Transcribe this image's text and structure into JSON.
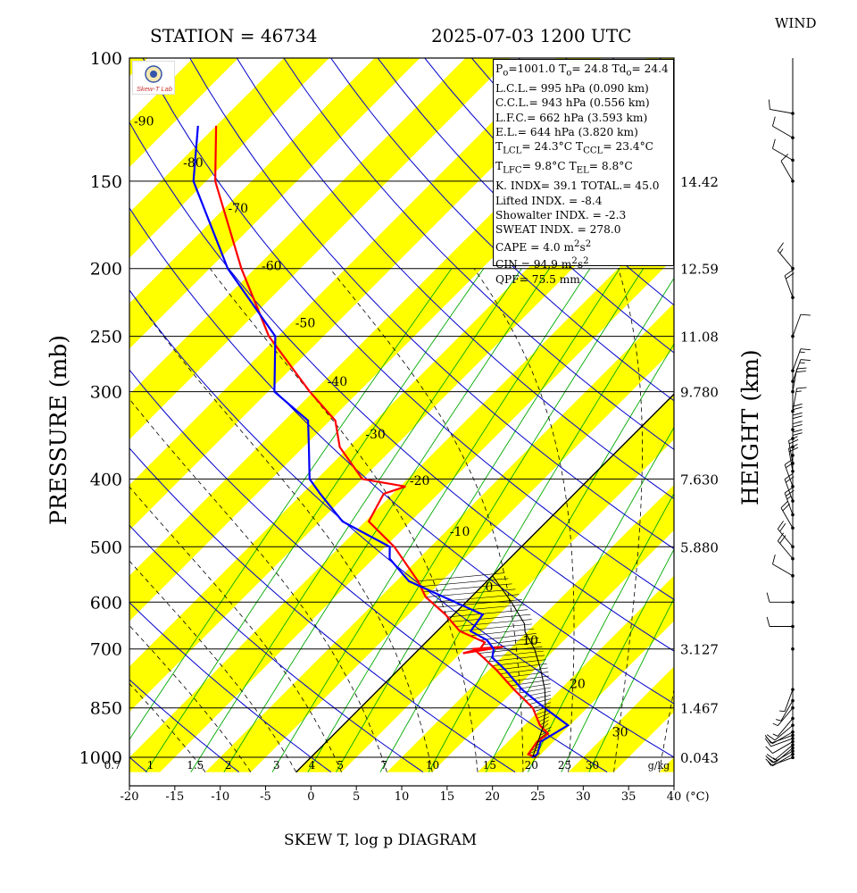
{
  "header": {
    "station": "STATION = 46734",
    "datetime": "2025-07-03 1200 UTC",
    "wind": "WIND"
  },
  "footer": {
    "title": "SKEW T, log p DIAGRAM"
  },
  "axes": {
    "ylabel": "PRESSURE (mb)",
    "ylabel_right": "HEIGHT (km)",
    "x_unit": "(°C)"
  },
  "logo": {
    "text": "Skew-T Lab"
  },
  "info": {
    "p0": "P",
    "p0_sub": "o",
    "p0_val": "=1001.0 ",
    "t0": "T",
    "t0_sub": "o",
    "t0_val": "= 24.8 ",
    "td0": "Td",
    "td0_sub": "o",
    "td0_val": "= 24.4",
    "lcl": "L.C.L.= 995 hPa (0.090 km)",
    "ccl": "C.C.L.= 943 hPa (0.556 km)",
    "lfc": "L.F.C.= 662 hPa (3.593 km)",
    "el": "E.L.= 644 hPa (3.820 km)",
    "tlcl": "T",
    "tlcl_sub": "LCL",
    "tlcl_val": "= 24.3°C ",
    "tccl": "T",
    "tccl_sub": "CCL",
    "tccl_val": "= 23.4°C",
    "tlfc": "T",
    "tlfc_sub": "LFC",
    "tlfc_val": "= 9.8°C  ",
    "tel": "T",
    "tel_sub": "EL",
    "tel_val": "= 8.8°C",
    "k": "K. INDX= 39.1  TOTAL.= 45.0",
    "li": "Lifted INDX. = -8.4",
    "si": "Showalter INDX. = -2.3",
    "sweat": "SWEAT INDX. = 278.0",
    "cape_label": "CAPE =",
    "cape_val": "4.0 m",
    "cape_exp": "2",
    "cape_s": "s",
    "cape_sexp": "2",
    "cin_label": "CIN  =",
    "cin_val": "94.9 m",
    "cin_exp": "2",
    "cin_s": "s",
    "cin_sexp": "2",
    "qpf": "QPF= 75.5 mm"
  },
  "colors": {
    "temperature": "#ff0000",
    "dewpoint": "#0000ff",
    "parcel": "#000000",
    "isotherm_band": "#ffff00",
    "dry_adiabat": "#0000cc",
    "moist_adiabat": "#000000",
    "mixing_ratio": "#00aa00"
  },
  "chart_data": {
    "type": "line",
    "title": "SKEW T, log p DIAGRAM",
    "ylabel": "PRESSURE (mb)",
    "y_scale": "log",
    "y_range": [
      1050,
      100
    ],
    "x_range": [
      -20,
      40
    ],
    "pressure_ticks": [
      "100",
      "150",
      "200",
      "250",
      "300",
      "400",
      "500",
      "600",
      "700",
      "850",
      "1000"
    ],
    "height_labels": [
      {
        "p": 150,
        "label": "14.42"
      },
      {
        "p": 200,
        "label": "12.59"
      },
      {
        "p": 250,
        "label": "11.08"
      },
      {
        "p": 300,
        "label": "9.780"
      },
      {
        "p": 400,
        "label": "7.630"
      },
      {
        "p": 500,
        "label": "5.880"
      },
      {
        "p": 700,
        "label": "3.127"
      },
      {
        "p": 850,
        "label": "1.467"
      },
      {
        "p": 1000,
        "label": "0.043"
      }
    ],
    "temp_ticks": [
      "-20",
      "-15",
      "-10",
      "-5",
      "0",
      "5",
      "10",
      "15",
      "20",
      "25",
      "30",
      "35",
      "40"
    ],
    "isotherm_labels": [
      {
        "t": -90,
        "p": 123
      },
      {
        "t": -80,
        "p": 141
      },
      {
        "t": -70,
        "p": 164
      },
      {
        "t": -60,
        "p": 198
      },
      {
        "t": -50,
        "p": 239
      },
      {
        "t": -40,
        "p": 290
      },
      {
        "t": -30,
        "p": 345
      },
      {
        "t": -20,
        "p": 402
      },
      {
        "t": -10,
        "p": 475
      },
      {
        "t": 0,
        "p": 570
      },
      {
        "t": 10,
        "p": 680
      },
      {
        "t": 20,
        "p": 785
      },
      {
        "t": 30,
        "p": 920
      }
    ],
    "mixing_ratio_labels": [
      "0.7",
      "1",
      "1.5",
      "2",
      "3",
      "4",
      "5",
      "7",
      "10",
      "15",
      "20",
      "25",
      "30"
    ],
    "mixing_ratio_unit": "g/kg",
    "series": [
      {
        "name": "temperature",
        "p": [
          1001,
          990,
          950,
          925,
          900,
          850,
          800,
          750,
          720,
          700,
          695,
          710,
          700,
          685,
          660,
          625,
          590,
          560,
          500,
          460,
          420,
          410,
          400,
          360,
          330,
          300,
          250,
          200,
          150,
          125
        ],
        "t": [
          24.8,
          23.6,
          23.2,
          23.5,
          21.7,
          19.0,
          14.9,
          10.8,
          8.0,
          6.0,
          9.0,
          5.3,
          6.7,
          6.5,
          2.5,
          -0.9,
          -5.0,
          -7.6,
          -14.0,
          -19.6,
          -21.0,
          -19.4,
          -25.0,
          -31.0,
          -34.4,
          -40.4,
          -51.0,
          -61.5,
          -74.0,
          -80.0
        ]
      },
      {
        "name": "dewpoint",
        "p": [
          1001,
          990,
          950,
          900,
          850,
          800,
          750,
          720,
          700,
          680,
          660,
          625,
          590,
          560,
          520,
          500,
          460,
          420,
          400,
          360,
          330,
          300,
          250,
          200,
          150,
          125
        ],
        "t": [
          24.4,
          24.6,
          23.6,
          24.8,
          20.3,
          15.8,
          11.8,
          9.0,
          8.2,
          6.5,
          3.7,
          3.2,
          -3.0,
          -8.6,
          -13.2,
          -14.5,
          -22.5,
          -28.0,
          -30.8,
          -34.4,
          -37.4,
          -44.3,
          -50.3,
          -63.0,
          -76.4,
          -82.0
        ]
      },
      {
        "name": "parcel",
        "p": [
          1001,
          995,
          950,
          900,
          850,
          800,
          750,
          700,
          662,
          644,
          600,
          550
        ],
        "t": [
          24.8,
          24.3,
          23.3,
          22.1,
          20.4,
          18.3,
          15.7,
          12.7,
          9.8,
          8.8,
          5.0,
          0.0
        ]
      }
    ],
    "wind": {
      "p": [
        1001,
        990,
        980,
        970,
        960,
        950,
        940,
        930,
        920,
        900,
        880,
        850,
        830,
        800,
        700,
        650,
        600,
        550,
        520,
        500,
        470,
        450,
        430,
        410,
        390,
        380,
        370,
        360,
        350,
        340,
        320,
        300,
        290,
        280,
        250,
        220,
        200,
        150,
        140,
        130,
        120
      ],
      "dir_deg": [
        250,
        240,
        240,
        230,
        230,
        240,
        250,
        250,
        240,
        230,
        220,
        220,
        210,
        200,
        0,
        270,
        270,
        300,
        320,
        320,
        330,
        340,
        340,
        340,
        350,
        350,
        0,
        0,
        0,
        0,
        10,
        10,
        20,
        20,
        20,
        340,
        320,
        330,
        300,
        300,
        280
      ],
      "speed_kt": [
        5,
        10,
        10,
        15,
        10,
        10,
        10,
        10,
        10,
        10,
        5,
        5,
        5,
        5,
        0,
        10,
        10,
        10,
        20,
        20,
        20,
        25,
        20,
        20,
        20,
        20,
        20,
        20,
        20,
        20,
        15,
        20,
        15,
        15,
        10,
        20,
        15,
        10,
        10,
        10,
        10
      ]
    }
  }
}
